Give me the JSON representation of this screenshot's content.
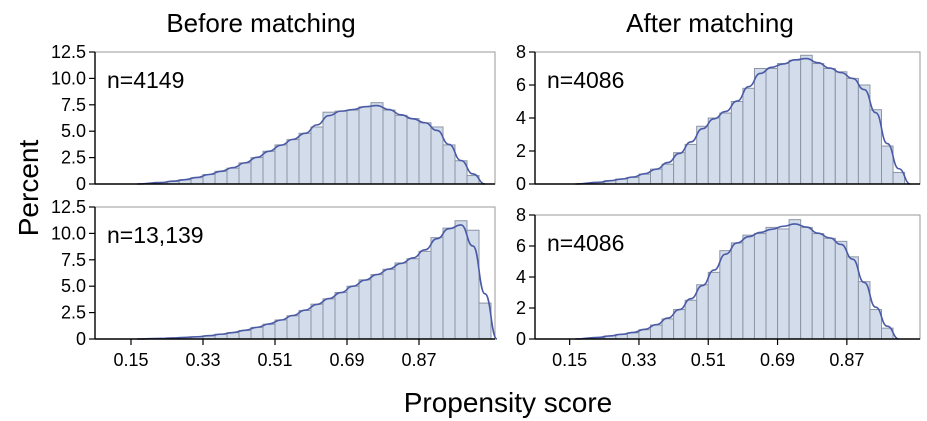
{
  "column_titles": {
    "left": "Before matching",
    "right": "After matching"
  },
  "ylabel": "Percent",
  "xlabel": "Propensity score",
  "chart_data": [
    {
      "type": "bar",
      "id": "before-top",
      "annotation": "n=4149",
      "ylim": [
        0,
        12.5
      ],
      "yticks": [
        "0",
        "2.5",
        "5.0",
        "7.5",
        "10.0",
        "12.5"
      ],
      "ytick_values": [
        0,
        2.5,
        5.0,
        7.5,
        10.0,
        12.5
      ],
      "xlim": [
        0.06,
        1.06
      ],
      "xticks": [
        "0.15",
        "0.33",
        "0.51",
        "0.69",
        "0.87"
      ],
      "xtick_values": [
        0.15,
        0.33,
        0.51,
        0.69,
        0.87
      ],
      "show_xticks": false,
      "bin_start": 0.21,
      "bin_width": 0.03,
      "values": [
        0.15,
        0.25,
        0.4,
        0.6,
        0.9,
        1.2,
        1.5,
        2.0,
        2.5,
        3.1,
        3.7,
        4.2,
        4.8,
        5.4,
        6.8,
        6.9,
        7.0,
        7.3,
        7.7,
        7.0,
        6.5,
        6.2,
        5.8,
        5.4,
        3.7,
        2.2,
        0.8
      ]
    },
    {
      "type": "bar",
      "id": "after-top",
      "annotation": "n=4086",
      "ylim": [
        0,
        8
      ],
      "yticks": [
        "0",
        "2",
        "4",
        "6",
        "8"
      ],
      "ytick_values": [
        0,
        2,
        4,
        6,
        8
      ],
      "xlim": [
        0.06,
        1.06
      ],
      "xticks": [
        "0.15",
        "0.33",
        "0.51",
        "0.69",
        "0.87"
      ],
      "xtick_values": [
        0.15,
        0.33,
        0.51,
        0.69,
        0.87
      ],
      "show_xticks": false,
      "bin_start": 0.21,
      "bin_width": 0.03,
      "values": [
        0.1,
        0.2,
        0.3,
        0.4,
        0.6,
        0.9,
        1.2,
        1.9,
        2.4,
        3.5,
        4.0,
        4.3,
        5.0,
        5.8,
        7.0,
        7.0,
        7.3,
        7.5,
        7.8,
        7.3,
        7.0,
        6.8,
        6.4,
        6.0,
        4.5,
        2.3,
        0.7
      ]
    },
    {
      "type": "bar",
      "id": "before-bottom",
      "annotation": "n=13,139",
      "ylim": [
        0,
        12.5
      ],
      "yticks": [
        "0",
        "2.5",
        "5.0",
        "7.5",
        "10.0",
        "12.5"
      ],
      "ytick_values": [
        0,
        2.5,
        5.0,
        7.5,
        10.0,
        12.5
      ],
      "xlim": [
        0.06,
        1.06
      ],
      "xticks": [
        "0.15",
        "0.33",
        "0.51",
        "0.69",
        "0.87"
      ],
      "xtick_values": [
        0.15,
        0.33,
        0.51,
        0.69,
        0.87
      ],
      "show_xticks": true,
      "bin_start": 0.21,
      "bin_width": 0.03,
      "values": [
        0.05,
        0.1,
        0.15,
        0.2,
        0.3,
        0.45,
        0.6,
        0.8,
        1.1,
        1.4,
        1.8,
        2.2,
        2.7,
        3.3,
        3.8,
        4.4,
        5.0,
        5.6,
        6.1,
        6.6,
        7.2,
        7.6,
        8.3,
        9.6,
        10.5,
        11.2,
        10.3,
        3.4
      ]
    },
    {
      "type": "bar",
      "id": "after-bottom",
      "annotation": "n=4086",
      "ylim": [
        0,
        8
      ],
      "yticks": [
        "0",
        "2",
        "4",
        "6",
        "8"
      ],
      "ytick_values": [
        0,
        2,
        4,
        6,
        8
      ],
      "xlim": [
        0.06,
        1.06
      ],
      "xticks": [
        "0.15",
        "0.33",
        "0.51",
        "0.69",
        "0.87"
      ],
      "xtick_values": [
        0.15,
        0.33,
        0.51,
        0.69,
        0.87
      ],
      "show_xticks": true,
      "bin_start": 0.21,
      "bin_width": 0.03,
      "values": [
        0.1,
        0.2,
        0.3,
        0.4,
        0.6,
        0.9,
        1.3,
        1.9,
        2.5,
        3.5,
        4.3,
        5.7,
        6.2,
        6.7,
        6.8,
        7.2,
        7.1,
        7.7,
        7.2,
        6.8,
        6.5,
        6.3,
        5.3,
        3.7,
        1.9,
        0.7
      ]
    }
  ]
}
